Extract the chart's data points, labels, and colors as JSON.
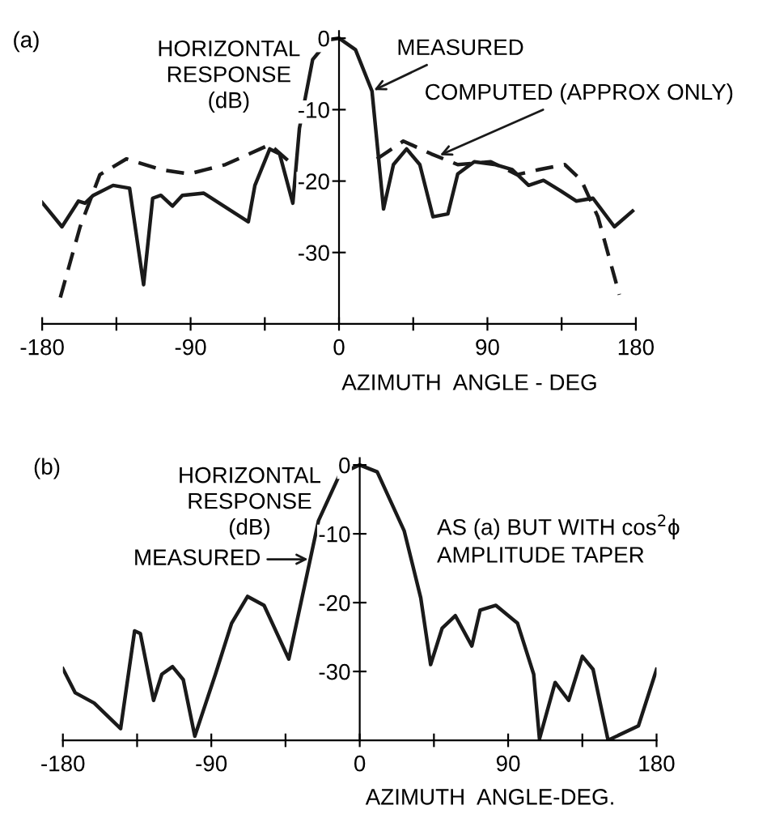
{
  "chart_data": [
    {
      "type": "line",
      "title": "(a)",
      "ylabel": "HORIZONTAL\nRESPONSE\n(dB)",
      "xlabel": "AZIMUTH  ANGLE - DEG",
      "xlim": [
        -180,
        180
      ],
      "ylim": [
        -40,
        1
      ],
      "xticks": [
        -180,
        {
          "value": -135,
          "label": null
        },
        -90,
        {
          "value": -45,
          "label": null
        },
        0,
        {
          "value": 45,
          "label": null
        },
        90,
        {
          "value": 135,
          "label": null
        },
        180
      ],
      "yticks": [
        {
          "value": 0,
          "label": "0"
        },
        {
          "value": -10,
          "label": "-10"
        },
        {
          "value": -20,
          "label": "-20"
        },
        {
          "value": -30,
          "label": "-30"
        }
      ],
      "grid": false,
      "legend": false,
      "series": [
        {
          "color": "#1a1a1a",
          "line_style": "solid",
          "x": [
            -180,
            -168,
            -158,
            -154,
            -149,
            -137,
            -127,
            -118.5,
            -113,
            -108,
            -101,
            -95,
            -82,
            -55,
            -51,
            -42,
            -36,
            -28,
            -24,
            -16,
            -6,
            0,
            10,
            20,
            27,
            33,
            41,
            49,
            57,
            66,
            72,
            82,
            95,
            105,
            115,
            124,
            134,
            144,
            154,
            167,
            178
          ],
          "values": [
            -23,
            -26.4,
            -22.8,
            -23.1,
            -22,
            -20.6,
            -21,
            -34.5,
            -22.4,
            -22,
            -23.5,
            -22,
            -21.7,
            -25.7,
            -20.6,
            -15.5,
            -16.2,
            -23.1,
            -12.6,
            -3,
            -0.2,
            0,
            -1.6,
            -7.4,
            -23.9,
            -17.7,
            -15.5,
            -17.7,
            -25,
            -24.6,
            -19,
            -17.3,
            -17.7,
            -18.4,
            -20.6,
            -19.9,
            -21.3,
            -22.8,
            -22.4,
            -26.4,
            -24.2
          ]
        },
        {
          "color": "#1a1a1a",
          "line_style": "dashed",
          "x": [
            -169,
            -157,
            -145,
            -129,
            -108,
            -91,
            -69,
            -42,
            -28,
            null,
            23,
            39,
            56,
            72,
            92,
            108,
            121,
            137,
            147,
            157,
            170
          ],
          "values": [
            -36.3,
            -26.4,
            -19.1,
            -16.9,
            -18.4,
            -19,
            -17.7,
            -14.9,
            -17.7,
            null,
            -16.9,
            -14.4,
            -16.2,
            -17.7,
            -17.3,
            -19.1,
            -18.4,
            -17.7,
            -19.9,
            -25,
            -35.9
          ]
        }
      ],
      "annotations": [
        {
          "text": "MEASURED",
          "x": 20,
          "y": -7.4
        },
        {
          "text": "COMPUTED (APPROX ONLY)",
          "x": 60,
          "y": -16.5
        }
      ]
    },
    {
      "type": "line",
      "title": "(b)",
      "ylabel": "HORIZONTAL\nRESPONSE\n(dB)",
      "xlabel": "AZIMUTH  ANGLE-DEG.",
      "xlim": [
        -180,
        180
      ],
      "ylim": [
        -40,
        1
      ],
      "xticks": [
        -180,
        {
          "value": -135,
          "label": null
        },
        -90,
        {
          "value": -45,
          "label": null
        },
        0,
        {
          "value": 45,
          "label": null
        },
        90,
        {
          "value": 135,
          "label": null
        },
        180
      ],
      "yticks": [
        {
          "value": 0,
          "label": "0"
        },
        {
          "value": -10,
          "label": "-10"
        },
        {
          "value": -20,
          "label": "-20"
        },
        {
          "value": -30,
          "label": "-30"
        }
      ],
      "grid": false,
      "legend": false,
      "series": [
        {
          "color": "#1a1a1a",
          "line_style": "solid",
          "x": [
            -180,
            -172.5,
            -161,
            -145,
            -136.5,
            -133,
            -125,
            -120,
            -113.5,
            -107,
            -100,
            -87.5,
            -77.7,
            -68,
            -58,
            -43,
            -35,
            -25,
            -12,
            0,
            10.6,
            27,
            37,
            43,
            50,
            58,
            68,
            73,
            82.6,
            95.7,
            105.5,
            109,
            118.5,
            126.7,
            135,
            141.5,
            150.6,
            169,
            180
          ],
          "values": [
            -29.6,
            -33.1,
            -34.6,
            -38.3,
            -24.1,
            -24.5,
            -34.2,
            -30.4,
            -29.3,
            -31.2,
            -39.4,
            -30.4,
            -23,
            -19.1,
            -20.4,
            -28.2,
            -19.3,
            -8.1,
            -1.3,
            0,
            -1,
            -9.6,
            -19.3,
            -29,
            -23.7,
            -21.9,
            -26.3,
            -21.1,
            -20.4,
            -23,
            -30.4,
            -39.8,
            -31.6,
            -34.2,
            -27.8,
            -29.7,
            -40,
            -37.9,
            -29.7
          ]
        }
      ],
      "annotations": [
        {
          "text": "MEASURED",
          "x": -30,
          "y": -13.7
        },
        "AS (a) BUT WITH cos$^{2}$ϕ\nAMPLITUDE TAPER"
      ]
    }
  ]
}
